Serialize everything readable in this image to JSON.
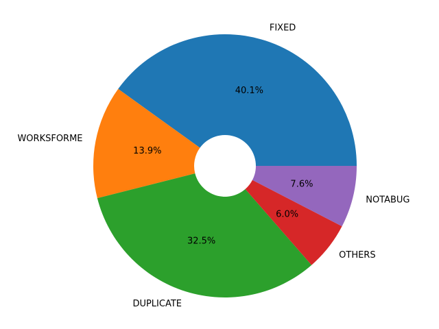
{
  "chart_data": {
    "type": "pie",
    "categories": [
      "FIXED",
      "WORKSFORME",
      "DUPLICATE",
      "OTHERS",
      "NOTABUG"
    ],
    "values": [
      40.1,
      13.9,
      32.5,
      6.0,
      7.6
    ],
    "value_labels": [
      "40.1%",
      "13.9%",
      "32.5%",
      "6.0%",
      "7.6%"
    ],
    "colors": [
      "#1f77b4",
      "#ff7f0e",
      "#2ca02c",
      "#d62728",
      "#9467bd"
    ]
  }
}
